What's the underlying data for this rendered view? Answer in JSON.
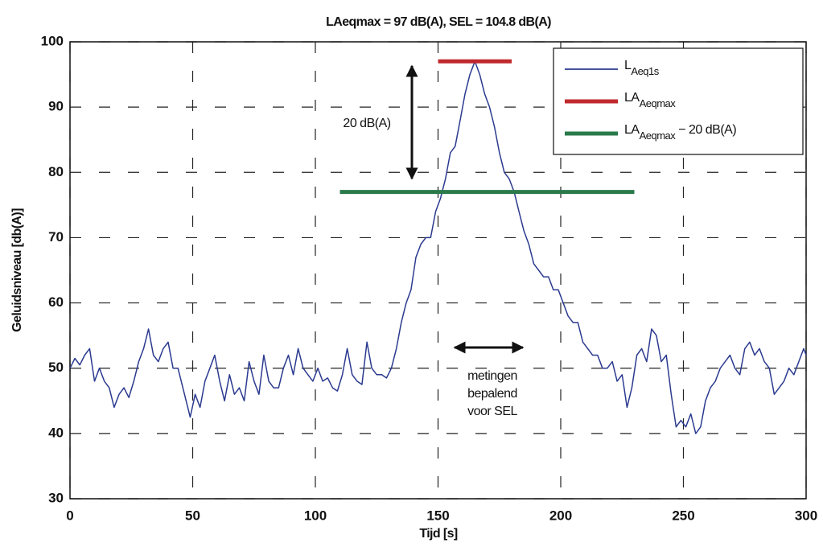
{
  "chart_data": {
    "type": "line",
    "title": "LAeqmax = 97 dB(A), SEL = 104.8 dB(A)",
    "x_label": "Tijd [s]",
    "y_label": "Geluidsniveau [db(A)]",
    "xlim": [
      0,
      300
    ],
    "xticks": [
      0,
      50,
      100,
      150,
      200,
      250,
      300
    ],
    "ylim": [
      30,
      100
    ],
    "yticks": [
      30,
      40,
      50,
      60,
      70,
      80,
      90,
      100
    ],
    "grid": true,
    "legend": "upper right",
    "series": [
      {
        "name": [
          {
            "text": "L"
          },
          {
            "text": "Aeq1s",
            "sub": true
          }
        ],
        "color": "#2b3a8f",
        "x": [
          0,
          2,
          4,
          6,
          8,
          10,
          12,
          14,
          16,
          18,
          20,
          22,
          24,
          26,
          28,
          30,
          32,
          34,
          36,
          38,
          40,
          42,
          44,
          46,
          48,
          49,
          51,
          53,
          55,
          57,
          59,
          61,
          63,
          65,
          67,
          69,
          71,
          73,
          75,
          77,
          79,
          81,
          83,
          85,
          87,
          89,
          91,
          93,
          95,
          97,
          99,
          101,
          103,
          105,
          107,
          109,
          111,
          113,
          115,
          117,
          119,
          121,
          123,
          125,
          127,
          129,
          131,
          133,
          135,
          137,
          139,
          141,
          143,
          145,
          147,
          149,
          151,
          153,
          155,
          157,
          159,
          161,
          163,
          165,
          167,
          169,
          171,
          173,
          175,
          177,
          179,
          181,
          183,
          185,
          187,
          189,
          191,
          193,
          195,
          197,
          199,
          201,
          203,
          205,
          207,
          209,
          211,
          213,
          215,
          217,
          219,
          221,
          223,
          225,
          227,
          229,
          231,
          233,
          235,
          237,
          239,
          241,
          243,
          245,
          247,
          249,
          251,
          253,
          255,
          257,
          259,
          261,
          263,
          265,
          267,
          269,
          271,
          273,
          275,
          277,
          279,
          281,
          283,
          285,
          287,
          289,
          291,
          293,
          295,
          297,
          299,
          300
        ],
        "values": [
          50,
          51.5,
          50.5,
          52,
          53,
          48,
          50,
          48,
          47,
          44,
          46,
          47,
          45.5,
          48,
          51,
          53,
          56,
          52,
          51,
          53,
          54,
          50,
          50,
          47,
          44,
          42.5,
          46,
          44,
          48,
          50,
          52,
          48,
          45,
          49,
          46,
          47,
          45,
          51,
          48,
          46,
          52,
          48,
          47,
          47,
          50,
          52,
          49,
          53,
          50,
          49,
          48,
          50,
          48,
          48.5,
          47,
          46.5,
          49,
          53,
          49,
          48,
          47.5,
          54,
          50,
          49,
          49,
          48.5,
          50,
          53,
          57,
          60,
          62,
          67,
          69,
          70,
          70,
          74,
          76,
          79,
          83,
          84,
          88,
          92,
          95,
          97,
          95,
          92,
          90,
          87,
          83,
          80,
          79,
          77,
          74,
          71,
          69,
          66,
          65,
          64,
          64,
          62,
          62,
          60,
          58,
          57,
          57,
          54,
          53,
          52,
          52,
          50,
          50,
          51,
          48,
          49,
          44,
          47,
          52,
          53,
          51,
          56,
          55,
          51,
          52,
          46,
          41,
          42,
          41,
          43,
          40,
          41,
          45,
          47,
          48,
          50,
          51,
          52,
          50,
          49,
          53,
          54,
          52,
          53,
          51,
          50,
          46,
          47,
          48,
          50,
          49,
          51,
          53,
          52
        ]
      },
      {
        "name": [
          {
            "text": "LA"
          },
          {
            "text": "Aeqmax",
            "sub": true
          }
        ],
        "color": "#c0282d",
        "x": [
          150,
          180
        ],
        "values": [
          97,
          97
        ]
      },
      {
        "name": [
          {
            "text": "LA"
          },
          {
            "text": "Aeqmax",
            "sub": true
          },
          {
            "text": " − 20 dB(A)"
          }
        ],
        "color": "#2a7a4a",
        "x": [
          110,
          230
        ],
        "values": [
          77,
          77
        ]
      }
    ],
    "annotations": [
      "20 dB(A)",
      "metingen",
      "bepalend",
      "voor SEL"
    ]
  }
}
